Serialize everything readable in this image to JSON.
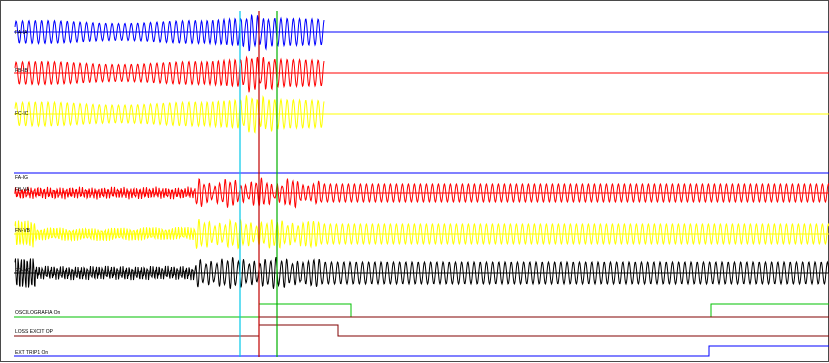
{
  "chart_data": {
    "type": "line",
    "title": "",
    "xlabel": "",
    "ylabel": "",
    "analog_channels": [
      {
        "name": "FA-IA",
        "label": "FA-IA",
        "color": "#0000ff"
      },
      {
        "name": "FB-IB",
        "label": "FB-IB",
        "color": "#ff0000"
      },
      {
        "name": "FC-IC",
        "label": "FC-IC",
        "color": "#ffff00"
      },
      {
        "name": "FA-IG",
        "label": "FA-IG",
        "color": "#0000ff"
      },
      {
        "name": "FB-VA",
        "label": "FB-VA",
        "color": "#ff0000"
      },
      {
        "name": "FN-VB",
        "label": "FN-VB",
        "color": "#ffff00"
      },
      {
        "name": "FD-VC",
        "label": "FD-VC",
        "color": "#000000"
      }
    ],
    "digital_channels": [
      {
        "label": "OSCILOGRAFIA On",
        "states": "low → high at marker 2 → low → high near end"
      },
      {
        "label": "LOSS EXCIT OP",
        "states": "pulse high after marker 2"
      },
      {
        "label": "EXT TRIP1   On",
        "states": "goes high near end"
      }
    ],
    "cursors": [
      {
        "name": "cursor-1",
        "color": "#00c8e8"
      },
      {
        "name": "cursor-2",
        "color": "#c00000"
      },
      {
        "name": "cursor-3",
        "color": "#00b000"
      }
    ]
  }
}
